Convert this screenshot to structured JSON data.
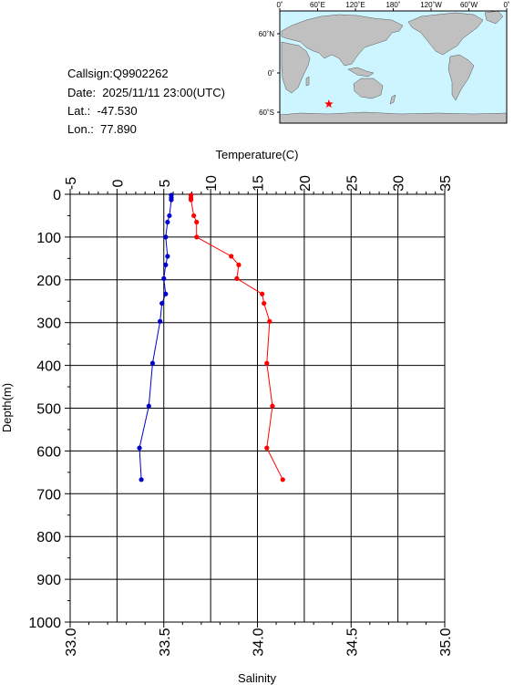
{
  "info": {
    "callsign": "Callsign:Q9902262",
    "date": "Date:  2025/11/11 23:00(UTC)",
    "lat": "Lat.:  -47.530",
    "lon": "Lon.:  77.890"
  },
  "map": {
    "lon_labels": [
      "0˚",
      "60˚E",
      "120˚E",
      "180˚",
      "120˚W",
      "60˚W",
      "0˚"
    ],
    "lat_labels": [
      "60˚N",
      "0˚",
      "60˚S"
    ],
    "ocean_color": "#ccf5ff",
    "land_color": "#c0c0c0",
    "marker": {
      "lon": 77.89,
      "lat": -47.53,
      "color": "#ff0000",
      "icon": "star-icon"
    }
  },
  "chart_data": {
    "type": "line",
    "title": "",
    "ylabel": "Depth(m)",
    "y_range": [
      0,
      1000
    ],
    "y_ticks": [
      "0",
      "100",
      "200",
      "300",
      "400",
      "500",
      "600",
      "700",
      "800",
      "900",
      "1000"
    ],
    "inverted_y": true,
    "top_axis": {
      "label": "Temperature(C)",
      "range": [
        -5,
        35
      ],
      "ticks": [
        "-5",
        "0",
        "5",
        "10",
        "15",
        "20",
        "25",
        "30",
        "35"
      ]
    },
    "bottom_axis": {
      "label": "Salinity",
      "range": [
        33.0,
        35.0
      ],
      "ticks": [
        "33.0",
        "33.5",
        "34.0",
        "34.5",
        "35.0"
      ]
    },
    "grid": true,
    "series": [
      {
        "axis": "top",
        "color": "#ff0000",
        "points": [
          {
            "x": 7.9,
            "y": 2
          },
          {
            "x": 7.9,
            "y": 8
          },
          {
            "x": 7.9,
            "y": 13
          },
          {
            "x": 8.2,
            "y": 50
          },
          {
            "x": 8.5,
            "y": 65
          },
          {
            "x": 8.5,
            "y": 100
          },
          {
            "x": 12.2,
            "y": 145
          },
          {
            "x": 13.0,
            "y": 165
          },
          {
            "x": 12.8,
            "y": 197
          },
          {
            "x": 15.5,
            "y": 233
          },
          {
            "x": 15.7,
            "y": 255
          },
          {
            "x": 16.3,
            "y": 297
          },
          {
            "x": 16.0,
            "y": 395
          },
          {
            "x": 16.6,
            "y": 495
          },
          {
            "x": 16.0,
            "y": 593
          },
          {
            "x": 17.7,
            "y": 667
          }
        ]
      },
      {
        "axis": "bottom",
        "color": "#0000cc",
        "points": [
          {
            "x": 33.54,
            "y": 2
          },
          {
            "x": 33.54,
            "y": 8
          },
          {
            "x": 33.54,
            "y": 13
          },
          {
            "x": 33.53,
            "y": 50
          },
          {
            "x": 33.52,
            "y": 65
          },
          {
            "x": 33.51,
            "y": 100
          },
          {
            "x": 33.52,
            "y": 145
          },
          {
            "x": 33.51,
            "y": 165
          },
          {
            "x": 33.5,
            "y": 197
          },
          {
            "x": 33.51,
            "y": 233
          },
          {
            "x": 33.49,
            "y": 255
          },
          {
            "x": 33.48,
            "y": 297
          },
          {
            "x": 33.44,
            "y": 395
          },
          {
            "x": 33.42,
            "y": 495
          },
          {
            "x": 33.37,
            "y": 593
          },
          {
            "x": 33.38,
            "y": 667
          }
        ]
      }
    ]
  }
}
